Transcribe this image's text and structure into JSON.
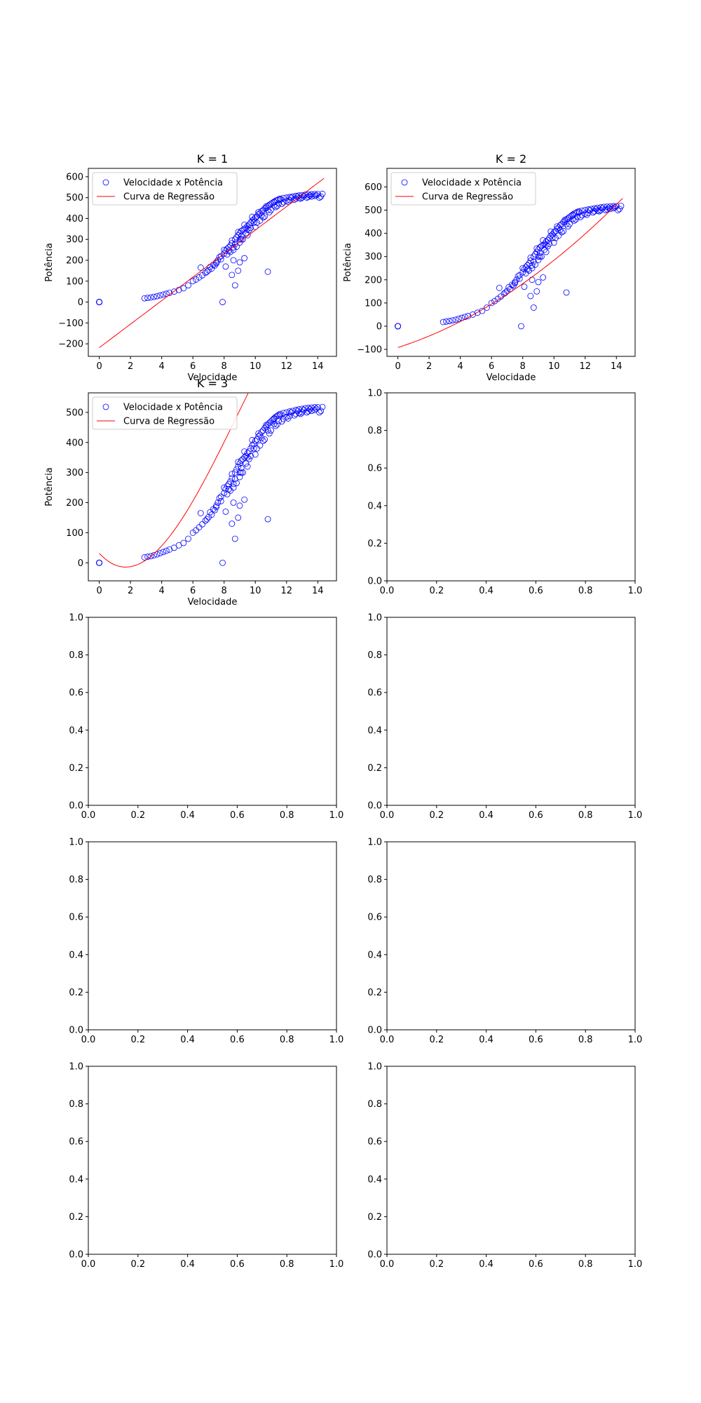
{
  "colors": {
    "scatter": "#0000ff",
    "regression": "#ff0000",
    "axes": "#000000",
    "background": "#ffffff"
  },
  "chart_data": [
    {
      "type": "scatter",
      "title": "K = 1",
      "xlabel": "Velocidade",
      "ylabel": "Potência",
      "xlim": [
        -0.7,
        15.2
      ],
      "ylim": [
        -260,
        640
      ],
      "xticks": [
        0,
        2,
        4,
        6,
        8,
        10,
        12,
        14
      ],
      "yticks": [
        -200,
        -100,
        0,
        100,
        200,
        300,
        400,
        500,
        600
      ],
      "legend": {
        "placement": "upper-left",
        "entries": [
          "Velocidade x Potência",
          "Curva de Regressão"
        ]
      },
      "series": [
        {
          "name": "Velocidade x Potência",
          "kind": "scatter",
          "source": "sample"
        },
        {
          "name": "Curva de Regressão",
          "kind": "line",
          "coefficients": [
            -218.5,
            56.3
          ],
          "x_range": [
            0,
            14.4
          ]
        }
      ]
    },
    {
      "type": "scatter",
      "title": "K = 2",
      "xlabel": "Velocidade",
      "ylabel": "Potência",
      "xlim": [
        -0.7,
        15.2
      ],
      "ylim": [
        -130,
        680
      ],
      "xticks": [
        0,
        2,
        4,
        6,
        8,
        10,
        12,
        14
      ],
      "yticks": [
        -100,
        0,
        100,
        200,
        300,
        400,
        500,
        600
      ],
      "legend": {
        "placement": "upper-left",
        "entries": [
          "Velocidade x Potência",
          "Curva de Regressão"
        ]
      },
      "series": [
        {
          "name": "Velocidade x Potência",
          "kind": "scatter",
          "source": "sample"
        },
        {
          "name": "Curva de Regressão",
          "kind": "line",
          "coefficients": [
            -92,
            21.6,
            1.6
          ],
          "x_range": [
            0,
            14.4
          ]
        }
      ]
    },
    {
      "type": "scatter",
      "title": "K = 3",
      "xlabel": "Velocidade",
      "ylabel": "Potência",
      "xlim": [
        -0.7,
        15.2
      ],
      "ylim": [
        -60,
        565
      ],
      "xticks": [
        0,
        2,
        4,
        6,
        8,
        10,
        12,
        14
      ],
      "yticks": [
        0,
        100,
        200,
        300,
        400,
        500
      ],
      "legend": {
        "placement": "upper-left",
        "entries": [
          "Velocidade x Potência",
          "Curva de Regressão"
        ]
      },
      "series": [
        {
          "name": "Velocidade x Potência",
          "kind": "scatter",
          "source": "sample"
        },
        {
          "name": "Curva de Regressão",
          "kind": "line",
          "coefficients": [
            31.5,
            -56,
            18.3,
            -0.69
          ],
          "x_range": [
            0,
            14.4
          ]
        }
      ]
    },
    {
      "type": "scatter",
      "empty": true,
      "xlim": [
        0,
        1
      ],
      "ylim": [
        0,
        1
      ],
      "xticks": [
        0.0,
        0.2,
        0.4,
        0.6,
        0.8,
        1.0
      ],
      "yticks": [
        0.0,
        0.2,
        0.4,
        0.6,
        0.8,
        1.0
      ]
    },
    {
      "type": "scatter",
      "empty": true,
      "xlim": [
        0,
        1
      ],
      "ylim": [
        0,
        1
      ],
      "xticks": [
        0.0,
        0.2,
        0.4,
        0.6,
        0.8,
        1.0
      ],
      "yticks": [
        0.0,
        0.2,
        0.4,
        0.6,
        0.8,
        1.0
      ]
    },
    {
      "type": "scatter",
      "empty": true,
      "xlim": [
        0,
        1
      ],
      "ylim": [
        0,
        1
      ],
      "xticks": [
        0.0,
        0.2,
        0.4,
        0.6,
        0.8,
        1.0
      ],
      "yticks": [
        0.0,
        0.2,
        0.4,
        0.6,
        0.8,
        1.0
      ]
    },
    {
      "type": "scatter",
      "empty": true,
      "xlim": [
        0,
        1
      ],
      "ylim": [
        0,
        1
      ],
      "xticks": [
        0.0,
        0.2,
        0.4,
        0.6,
        0.8,
        1.0
      ],
      "yticks": [
        0.0,
        0.2,
        0.4,
        0.6,
        0.8,
        1.0
      ]
    },
    {
      "type": "scatter",
      "empty": true,
      "xlim": [
        0,
        1
      ],
      "ylim": [
        0,
        1
      ],
      "xticks": [
        0.0,
        0.2,
        0.4,
        0.6,
        0.8,
        1.0
      ],
      "yticks": [
        0.0,
        0.2,
        0.4,
        0.6,
        0.8,
        1.0
      ]
    },
    {
      "type": "scatter",
      "empty": true,
      "xlim": [
        0,
        1
      ],
      "ylim": [
        0,
        1
      ],
      "xticks": [
        0.0,
        0.2,
        0.4,
        0.6,
        0.8,
        1.0
      ],
      "yticks": [
        0.0,
        0.2,
        0.4,
        0.6,
        0.8,
        1.0
      ]
    },
    {
      "type": "scatter",
      "empty": true,
      "xlim": [
        0,
        1
      ],
      "ylim": [
        0,
        1
      ],
      "xticks": [
        0.0,
        0.2,
        0.4,
        0.6,
        0.8,
        1.0
      ],
      "yticks": [
        0.0,
        0.2,
        0.4,
        0.6,
        0.8,
        1.0
      ]
    }
  ],
  "sample_points": [
    [
      0,
      0
    ],
    [
      0,
      0
    ],
    [
      0,
      0
    ],
    [
      0,
      0
    ],
    [
      0,
      0
    ],
    [
      0,
      0
    ],
    [
      2.9,
      18
    ],
    [
      3.1,
      20
    ],
    [
      3.3,
      22
    ],
    [
      3.5,
      25
    ],
    [
      3.7,
      28
    ],
    [
      3.9,
      32
    ],
    [
      4.1,
      36
    ],
    [
      4.3,
      40
    ],
    [
      4.5,
      44
    ],
    [
      4.8,
      50
    ],
    [
      5.1,
      58
    ],
    [
      5.4,
      66
    ],
    [
      5.7,
      80
    ],
    [
      6.0,
      100
    ],
    [
      6.2,
      108
    ],
    [
      6.4,
      118
    ],
    [
      6.5,
      165
    ],
    [
      6.6,
      128
    ],
    [
      6.8,
      140
    ],
    [
      7.0,
      152
    ],
    [
      7.1,
      168
    ],
    [
      7.3,
      178
    ],
    [
      7.5,
      190
    ],
    [
      7.6,
      200
    ],
    [
      7.7,
      215
    ],
    [
      7.8,
      220
    ],
    [
      7.9,
      0
    ],
    [
      8.0,
      232
    ],
    [
      8.0,
      250
    ],
    [
      8.1,
      170
    ],
    [
      8.2,
      255
    ],
    [
      8.3,
      262
    ],
    [
      8.4,
      270
    ],
    [
      8.4,
      240
    ],
    [
      8.5,
      130
    ],
    [
      8.5,
      282
    ],
    [
      8.6,
      250
    ],
    [
      8.6,
      200
    ],
    [
      8.7,
      300
    ],
    [
      8.7,
      80
    ],
    [
      8.8,
      310
    ],
    [
      8.8,
      265
    ],
    [
      8.9,
      320
    ],
    [
      8.9,
      150
    ],
    [
      9.0,
      330
    ],
    [
      9.0,
      285
    ],
    [
      9.0,
      190
    ],
    [
      9.1,
      340
    ],
    [
      9.2,
      345
    ],
    [
      9.2,
      300
    ],
    [
      9.3,
      210
    ],
    [
      9.3,
      350
    ],
    [
      9.4,
      355
    ],
    [
      9.5,
      365
    ],
    [
      9.5,
      320
    ],
    [
      9.6,
      370
    ],
    [
      9.7,
      380
    ],
    [
      9.8,
      390
    ],
    [
      9.9,
      395
    ],
    [
      10.0,
      405
    ],
    [
      10.0,
      360
    ],
    [
      10.1,
      410
    ],
    [
      10.2,
      420
    ],
    [
      10.3,
      425
    ],
    [
      10.4,
      435
    ],
    [
      10.5,
      440
    ],
    [
      10.6,
      448
    ],
    [
      10.7,
      452
    ],
    [
      10.8,
      460
    ],
    [
      10.8,
      145
    ],
    [
      10.9,
      465
    ],
    [
      11.0,
      470
    ],
    [
      11.1,
      475
    ],
    [
      11.2,
      480
    ],
    [
      11.3,
      485
    ],
    [
      11.4,
      488
    ],
    [
      11.5,
      492
    ],
    [
      11.6,
      495
    ],
    [
      11.8,
      498
    ],
    [
      12.0,
      500
    ],
    [
      12.2,
      503
    ],
    [
      12.4,
      505
    ],
    [
      12.6,
      508
    ],
    [
      12.8,
      510
    ],
    [
      13.0,
      512
    ],
    [
      13.2,
      514
    ],
    [
      13.4,
      515
    ],
    [
      13.6,
      516
    ],
    [
      13.8,
      517
    ],
    [
      14.0,
      517
    ],
    [
      14.3,
      518
    ],
    [
      9.1,
      300
    ],
    [
      9.4,
      330
    ],
    [
      9.7,
      355
    ],
    [
      10.3,
      390
    ],
    [
      10.6,
      410
    ],
    [
      11.0,
      440
    ],
    [
      11.4,
      460
    ],
    [
      11.8,
      478
    ],
    [
      12.2,
      488
    ],
    [
      12.6,
      495
    ],
    [
      13.0,
      500
    ],
    [
      13.4,
      504
    ],
    [
      13.8,
      508
    ],
    [
      14.2,
      505
    ],
    [
      7.2,
      160
    ],
    [
      7.4,
      175
    ],
    [
      7.8,
      205
    ],
    [
      8.2,
      228
    ],
    [
      8.6,
      262
    ],
    [
      9.0,
      300
    ],
    [
      9.6,
      345
    ],
    [
      10.1,
      380
    ],
    [
      10.5,
      405
    ],
    [
      10.9,
      430
    ],
    [
      11.3,
      455
    ],
    [
      11.7,
      470
    ],
    [
      12.1,
      480
    ],
    [
      12.5,
      490
    ],
    [
      12.9,
      495
    ],
    [
      13.3,
      500
    ],
    [
      6.9,
      145
    ],
    [
      7.5,
      185
    ],
    [
      8.1,
      245
    ],
    [
      8.5,
      295
    ],
    [
      8.9,
      335
    ],
    [
      9.3,
      370
    ],
    [
      9.8,
      408
    ],
    [
      10.2,
      430
    ],
    [
      10.7,
      458
    ],
    [
      11.2,
      478
    ],
    [
      11.6,
      490
    ],
    [
      12.3,
      500
    ],
    [
      12.7,
      505
    ],
    [
      13.1,
      508
    ],
    [
      13.5,
      510
    ],
    [
      13.9,
      512
    ],
    [
      14.1,
      500
    ],
    [
      8.3,
      245
    ],
    [
      8.7,
      278
    ],
    [
      9.1,
      315
    ],
    [
      9.5,
      350
    ],
    [
      9.9,
      380
    ],
    [
      10.4,
      415
    ],
    [
      10.8,
      440
    ],
    [
      11.2,
      462
    ],
    [
      11.5,
      472
    ],
    [
      12.0,
      485
    ],
    [
      12.8,
      498
    ],
    [
      13.6,
      505
    ]
  ]
}
